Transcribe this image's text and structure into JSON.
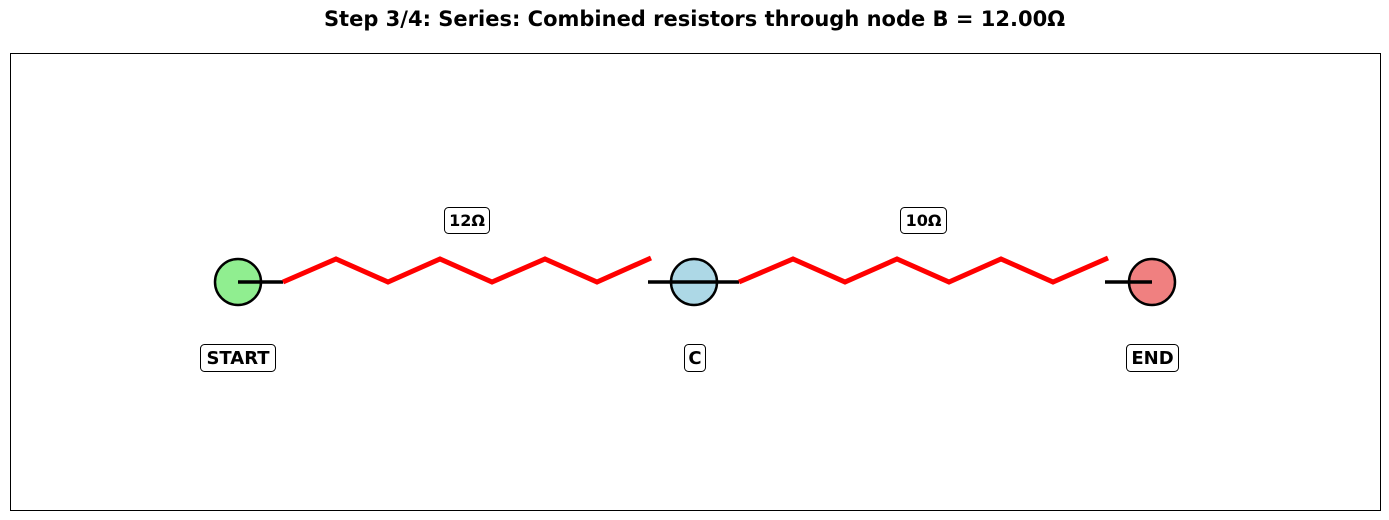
{
  "title": "Step 3/4: Series: Combined resistors through node B = 12.00Ω",
  "nodes": [
    {
      "id": "start",
      "label": "START",
      "color": "#90ee90"
    },
    {
      "id": "c",
      "label": "C",
      "color": "#add8e6"
    },
    {
      "id": "end",
      "label": "END",
      "color": "#f08080"
    }
  ],
  "resistors": [
    {
      "from": "start",
      "to": "c",
      "label": "12Ω",
      "color": "#ff0000"
    },
    {
      "from": "c",
      "to": "end",
      "label": "10Ω",
      "color": "#ff0000"
    }
  ]
}
